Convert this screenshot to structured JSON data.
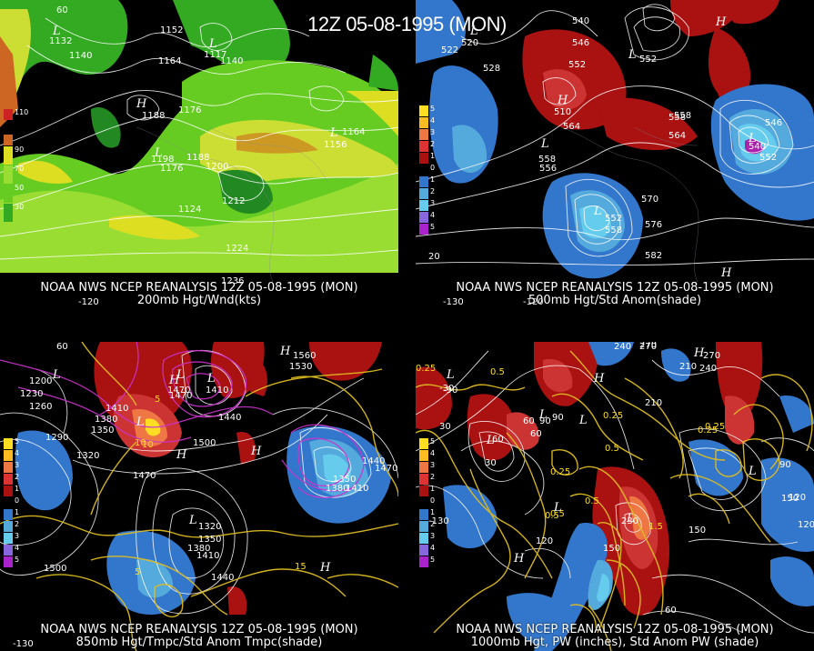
{
  "title": "12Z 05-08-1995 (MON)",
  "panels": [
    {
      "caption1": "NOAA NWS NCEP REANALYSIS 12Z 05-08-1995 (MON)",
      "caption2": "200mb Hgt/Wnd(kts)",
      "legend": [
        "110",
        "90",
        "70",
        "50",
        "30"
      ],
      "labels": [
        "1152",
        "1140",
        "1164",
        "1188",
        "1176",
        "1176",
        "1188",
        "1200",
        "1212",
        "1224",
        "1236",
        "1156",
        "1164",
        "1132",
        "1117",
        "1140",
        "1124",
        "1198"
      ],
      "hl": [
        "L",
        "L",
        "H",
        "L",
        "L"
      ],
      "lon": [
        "-120",
        "60"
      ]
    },
    {
      "caption1": "NOAA NWS NCEP REANALYSIS 12Z 05-08-1995 (MON)",
      "caption2": "500mb Hgt/Std Anom(shade)",
      "legend": [
        "5",
        "4",
        "3",
        "2",
        "1",
        "0",
        "1",
        "2",
        "3",
        "4",
        "5"
      ],
      "labels": [
        "540",
        "546",
        "552",
        "558",
        "564",
        "558",
        "564",
        "570",
        "576",
        "582",
        "522",
        "528",
        "546",
        "552",
        "540",
        "552",
        "558",
        "556",
        "552",
        "558",
        "520",
        "510"
      ],
      "hl": [
        "H",
        "L",
        "L",
        "H",
        "L",
        "L",
        "H",
        "L"
      ],
      "lon": [
        "-130",
        "-120",
        "20"
      ]
    },
    {
      "caption1": "NOAA NWS NCEP REANALYSIS 12Z 05-08-1995 (MON)",
      "caption2": "850mb Hgt/Tmpc/Std Anom Tmpc(shade)",
      "legend": [
        "5",
        "4",
        "3",
        "2",
        "1",
        "0",
        "1",
        "2",
        "3",
        "4",
        "5"
      ],
      "labels": [
        "1200",
        "1230",
        "1260",
        "1290",
        "1320",
        "1350",
        "1380",
        "1410",
        "1440",
        "1470",
        "1500",
        "1470",
        "1440",
        "1410",
        "1320",
        "1350",
        "1380",
        "1410",
        "1470",
        "1500",
        "1530",
        "1560",
        "1440",
        "1470",
        "1350",
        "1380",
        "1410",
        "10",
        "5",
        "10",
        "15",
        "5"
      ],
      "hl": [
        "L",
        "L",
        "H",
        "L",
        "H",
        "H",
        "L",
        "H",
        "H",
        "L"
      ],
      "lon": [
        "60",
        "-130"
      ]
    },
    {
      "caption1": "NOAA NWS NCEP REANALYSIS 12Z 05-08-1995 (MON)",
      "caption2": "1000mb Hgt, PW (inches), Std Anom PW (shade)",
      "legend": [
        "5",
        "4",
        "3",
        "2",
        "1",
        "0",
        "1",
        "2",
        "3",
        "4",
        "5"
      ],
      "labels": [
        "0.25",
        "0.5",
        "0.25",
        "0.5",
        "0.25",
        "0.5",
        "0.25",
        "0.5",
        "0.25",
        "0.5",
        "1.5",
        "30",
        "60",
        "90",
        "120",
        "150",
        "210",
        "240",
        "270",
        "-90",
        "30",
        "60",
        "90",
        "120",
        "150",
        "210",
        "240",
        "270",
        "90",
        "60",
        "120",
        "150",
        "230",
        "270",
        "-30",
        "60"
      ],
      "hl": [
        "L",
        "L",
        "L",
        "L",
        "H",
        "L",
        "H",
        "L",
        "H",
        "L"
      ],
      "lon": [
        "-130"
      ]
    }
  ]
}
